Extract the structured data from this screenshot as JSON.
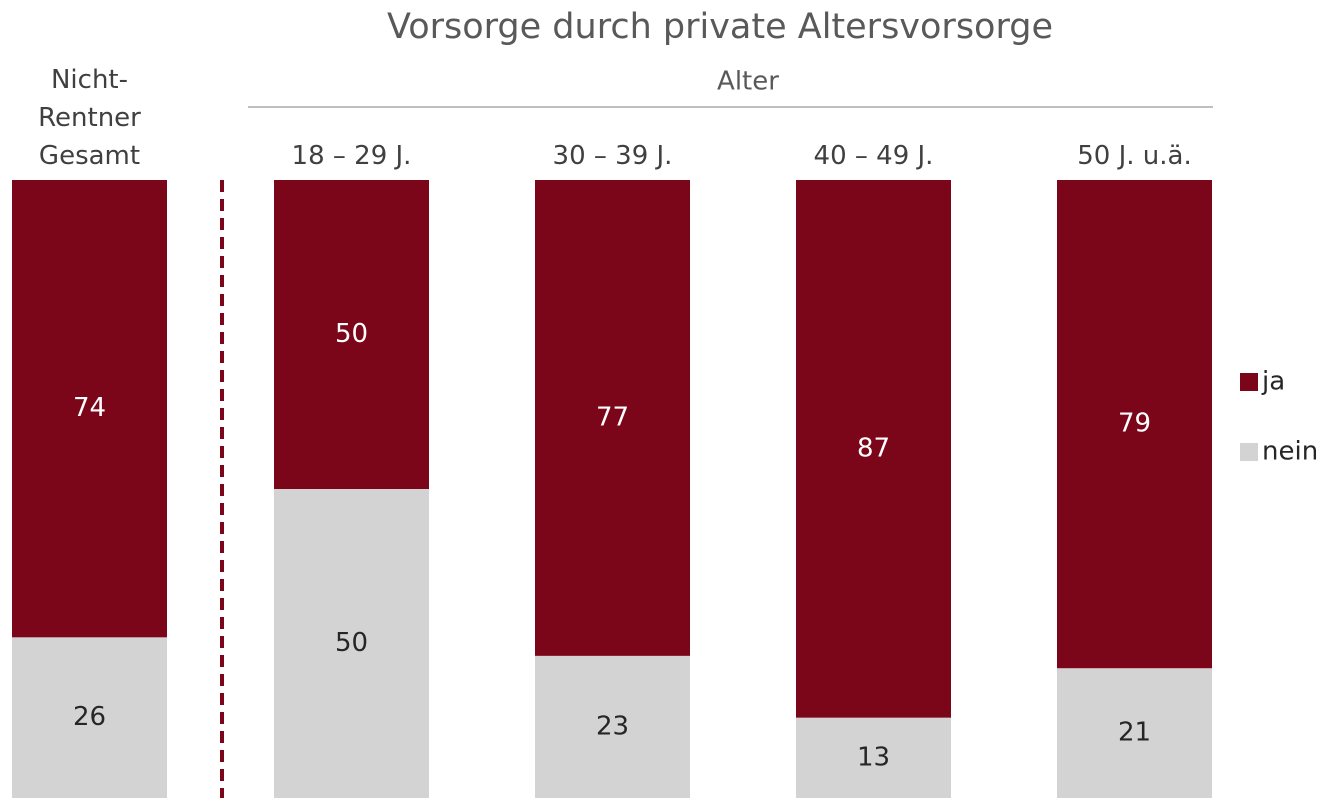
{
  "chart_data": {
    "type": "stacked_bar",
    "title": "Vorsorge durch private Altersvorsorge",
    "group_label": "Alter",
    "categories": [
      "Nicht-\nRentner\nGesamt",
      "18 – 29 J.",
      "30 – 39 J.",
      "40 – 49 J.",
      "50 J. u.ä."
    ],
    "series": [
      {
        "name": "nein",
        "color": "#d3d3d3",
        "values": [
          26,
          50,
          23,
          13,
          21
        ]
      },
      {
        "name": "ja",
        "color": "#7b0619",
        "values": [
          74,
          50,
          77,
          87,
          79
        ]
      }
    ],
    "ylim": [
      0,
      100
    ],
    "legend": "right"
  }
}
